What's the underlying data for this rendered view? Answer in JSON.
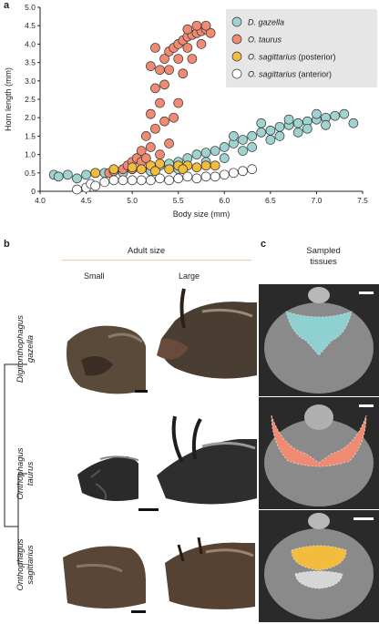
{
  "panels": {
    "a": "a",
    "b": "b",
    "c": "c"
  },
  "chart_data": {
    "type": "scatter",
    "xlabel": "Body size (mm)",
    "ylabel": "Horn length (mm)",
    "xlim": [
      4.0,
      7.5
    ],
    "ylim": [
      0,
      5.0
    ],
    "xticks": [
      "4.0",
      "4.5",
      "5.0",
      "5.5",
      "6.0",
      "6.5",
      "7.0",
      "7.5"
    ],
    "yticks": [
      "0",
      "0.5",
      "1.0",
      "1.5",
      "2.0",
      "2.5",
      "3.0",
      "3.5",
      "4.0",
      "4.5",
      "5.0"
    ],
    "legend_position": "top-right",
    "series": [
      {
        "name": "D. gazella",
        "color": "#9fd3cf",
        "points": [
          [
            4.15,
            0.45
          ],
          [
            4.2,
            0.4
          ],
          [
            4.3,
            0.45
          ],
          [
            4.4,
            0.35
          ],
          [
            4.5,
            0.45
          ],
          [
            4.6,
            0.5
          ],
          [
            4.7,
            0.5
          ],
          [
            4.8,
            0.55
          ],
          [
            4.9,
            0.55
          ],
          [
            5.0,
            0.6
          ],
          [
            5.1,
            0.6
          ],
          [
            5.2,
            0.65
          ],
          [
            5.3,
            0.7
          ],
          [
            5.4,
            0.75
          ],
          [
            5.5,
            0.8
          ],
          [
            5.6,
            0.9
          ],
          [
            5.7,
            1.0
          ],
          [
            5.8,
            1.05
          ],
          [
            5.9,
            1.1
          ],
          [
            6.0,
            1.2
          ],
          [
            6.1,
            1.3
          ],
          [
            6.2,
            1.4
          ],
          [
            6.3,
            1.5
          ],
          [
            6.4,
            1.6
          ],
          [
            6.5,
            1.65
          ],
          [
            6.6,
            1.75
          ],
          [
            6.7,
            1.8
          ],
          [
            6.8,
            1.85
          ],
          [
            6.9,
            1.9
          ],
          [
            7.0,
            1.95
          ],
          [
            7.1,
            2.0
          ],
          [
            7.2,
            2.05
          ],
          [
            7.3,
            2.1
          ],
          [
            7.4,
            1.85
          ],
          [
            6.2,
            1.1
          ],
          [
            6.5,
            1.4
          ],
          [
            6.8,
            1.6
          ],
          [
            5.8,
            0.8
          ],
          [
            6.0,
            0.9
          ],
          [
            6.3,
            1.2
          ],
          [
            6.6,
            1.5
          ],
          [
            6.9,
            1.7
          ],
          [
            7.1,
            1.8
          ],
          [
            5.5,
            0.6
          ],
          [
            5.2,
            0.55
          ],
          [
            4.9,
            0.5
          ],
          [
            6.1,
            1.5
          ],
          [
            6.4,
            1.85
          ],
          [
            6.7,
            1.95
          ],
          [
            7.0,
            2.1
          ]
        ]
      },
      {
        "name": "O. taurus",
        "color": "#f08a72",
        "points": [
          [
            4.75,
            0.5
          ],
          [
            4.8,
            0.55
          ],
          [
            4.9,
            0.6
          ],
          [
            4.95,
            0.7
          ],
          [
            5.0,
            0.8
          ],
          [
            5.05,
            0.9
          ],
          [
            5.1,
            1.1
          ],
          [
            5.15,
            1.5
          ],
          [
            5.2,
            2.1
          ],
          [
            5.25,
            2.8
          ],
          [
            5.3,
            3.3
          ],
          [
            5.35,
            3.6
          ],
          [
            5.4,
            3.8
          ],
          [
            5.45,
            3.9
          ],
          [
            5.5,
            4.0
          ],
          [
            5.55,
            4.1
          ],
          [
            5.6,
            4.2
          ],
          [
            5.65,
            4.25
          ],
          [
            5.7,
            4.3
          ],
          [
            5.75,
            4.35
          ],
          [
            5.8,
            4.4
          ],
          [
            5.85,
            4.3
          ],
          [
            5.2,
            3.4
          ],
          [
            5.25,
            3.9
          ],
          [
            5.3,
            2.4
          ],
          [
            5.35,
            2.9
          ],
          [
            5.4,
            3.3
          ],
          [
            5.5,
            3.6
          ],
          [
            5.6,
            3.9
          ],
          [
            5.7,
            4.5
          ],
          [
            5.8,
            4.5
          ],
          [
            5.1,
            0.8
          ],
          [
            5.15,
            0.9
          ],
          [
            5.3,
            1.0
          ],
          [
            5.4,
            1.3
          ],
          [
            5.5,
            2.4
          ],
          [
            5.25,
            1.7
          ],
          [
            5.45,
            2.0
          ],
          [
            5.65,
            3.6
          ],
          [
            5.0,
            0.6
          ],
          [
            5.2,
            1.2
          ],
          [
            5.35,
            1.9
          ],
          [
            5.55,
            3.2
          ],
          [
            5.75,
            4.0
          ],
          [
            5.6,
            4.4
          ]
        ]
      },
      {
        "name": "O. sagittarius (posterior)",
        "color": "#f2bc3c",
        "points": [
          [
            4.6,
            0.5
          ],
          [
            4.8,
            0.6
          ],
          [
            5.0,
            0.65
          ],
          [
            5.1,
            0.6
          ],
          [
            5.2,
            0.7
          ],
          [
            5.3,
            0.75
          ],
          [
            5.4,
            0.6
          ],
          [
            5.5,
            0.7
          ],
          [
            5.6,
            0.7
          ],
          [
            5.7,
            0.65
          ],
          [
            5.8,
            0.7
          ],
          [
            5.9,
            0.7
          ],
          [
            5.25,
            0.55
          ],
          [
            5.55,
            0.6
          ]
        ]
      },
      {
        "name": "O. sagittarius (anterior)",
        "color": "#ffffff",
        "points": [
          [
            4.4,
            0.05
          ],
          [
            4.5,
            0.1
          ],
          [
            4.55,
            0.2
          ],
          [
            4.6,
            0.15
          ],
          [
            4.7,
            0.25
          ],
          [
            4.8,
            0.3
          ],
          [
            4.9,
            0.3
          ],
          [
            5.0,
            0.3
          ],
          [
            5.1,
            0.3
          ],
          [
            5.2,
            0.3
          ],
          [
            5.3,
            0.35
          ],
          [
            5.4,
            0.3
          ],
          [
            5.5,
            0.35
          ],
          [
            5.6,
            0.4
          ],
          [
            5.7,
            0.35
          ],
          [
            5.8,
            0.4
          ],
          [
            5.9,
            0.4
          ],
          [
            6.0,
            0.45
          ],
          [
            6.1,
            0.5
          ],
          [
            6.2,
            0.55
          ],
          [
            6.3,
            0.6
          ]
        ]
      }
    ]
  },
  "panel_b": {
    "header": "Adult size",
    "small": "Small",
    "large": "Large",
    "species": [
      {
        "genus": "Digitonthophagus",
        "epithet": "gazella"
      },
      {
        "genus": "Onthophagus",
        "epithet": "taurus"
      },
      {
        "genus": "Onthophagus",
        "epithet": "sagittarius"
      }
    ]
  },
  "panel_c": {
    "title_line1": "Sampled",
    "title_line2": "tissues",
    "tissue_colors": [
      "#8fd0d0",
      "#f08a72",
      "#f2bc3c"
    ]
  }
}
